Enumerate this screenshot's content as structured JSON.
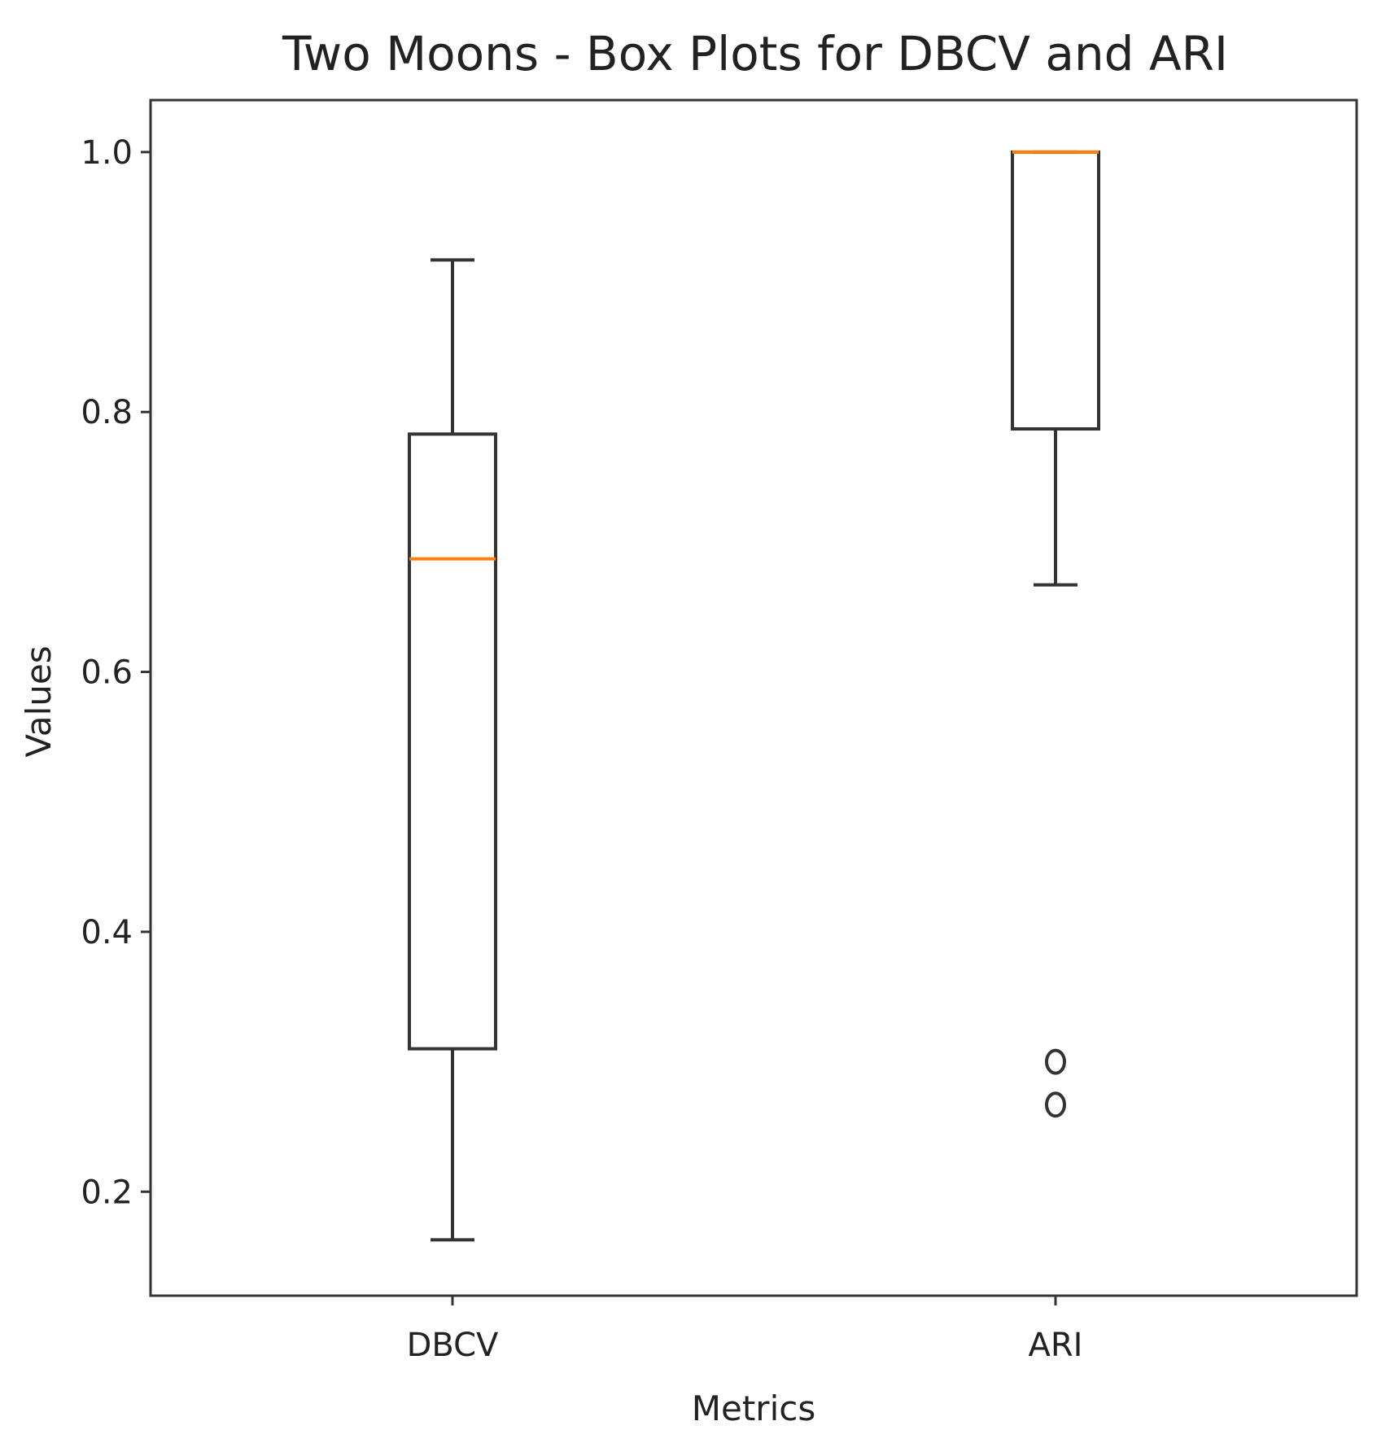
{
  "chart_data": {
    "type": "box",
    "title": "Two Moons - Box Plots for DBCV and ARI",
    "xlabel": "Metrics",
    "ylabel": "Values",
    "ylim": [
      0.12,
      1.04
    ],
    "yticks": [
      0.2,
      0.4,
      0.6,
      0.8,
      1.0
    ],
    "ytick_labels": [
      "0.2",
      "0.4",
      "0.6",
      "0.8",
      "1.0"
    ],
    "grid": false,
    "categories": [
      "DBCV",
      "ARI"
    ],
    "boxes": [
      {
        "label": "DBCV",
        "whisker_low": 0.163,
        "q1": 0.31,
        "median": 0.687,
        "q3": 0.783,
        "whisker_high": 0.917,
        "outliers": []
      },
      {
        "label": "ARI",
        "whisker_low": 0.667,
        "q1": 0.787,
        "median": 1.0,
        "q3": 1.0,
        "whisker_high": 1.0,
        "outliers": [
          0.3,
          0.267
        ]
      }
    ],
    "colors": {
      "box": "#333333",
      "median": "#ff7f0e",
      "frame": "#333333"
    }
  }
}
